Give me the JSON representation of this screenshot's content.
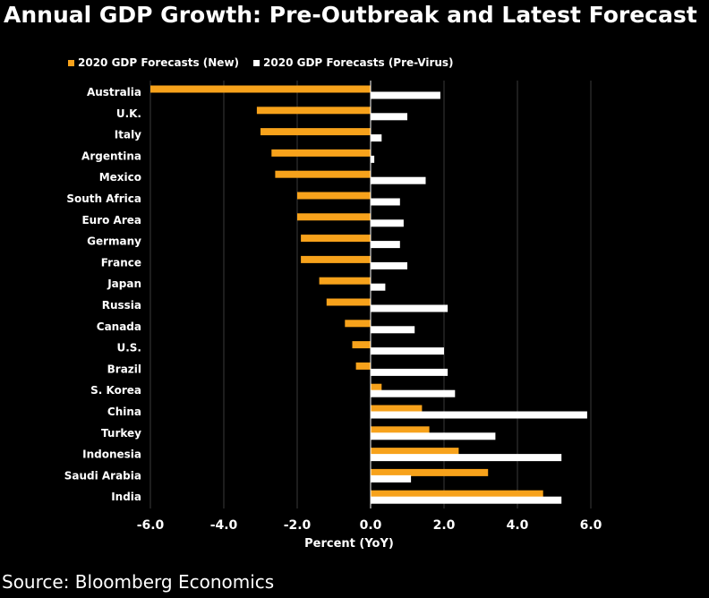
{
  "title": "Annual GDP Growth: Pre-Outbreak and Latest Forecast",
  "source": "Source: Bloomberg Economics",
  "colors": {
    "background": "#000000",
    "new": "#f7a21b",
    "pre_virus": "#ffffff",
    "grid": "#3a3a3a",
    "zero_line": "#ffffff"
  },
  "chart_data": {
    "type": "bar",
    "orientation": "horizontal",
    "title": "Annual GDP Growth: Pre-Outbreak and Latest Forecast",
    "xlabel": "Percent (YoY)",
    "ylabel": "",
    "xlim": [
      -6.0,
      6.0
    ],
    "xticks": [
      -6.0,
      -4.0,
      -2.0,
      0.0,
      2.0,
      4.0,
      6.0
    ],
    "xtick_labels": [
      "-6.0",
      "-4.0",
      "-2.0",
      "0.0",
      "2.0",
      "4.0",
      "6.0"
    ],
    "grid": "vertical",
    "legend_position": "top-left",
    "categories": [
      "Australia",
      "U.K.",
      "Italy",
      "Argentina",
      "Mexico",
      "South Africa",
      "Euro Area",
      "Germany",
      "France",
      "Japan",
      "Russia",
      "Canada",
      "U.S.",
      "Brazil",
      "S. Korea",
      "China",
      "Turkey",
      "Indonesia",
      "Saudi Arabia",
      "India"
    ],
    "series": [
      {
        "name": "2020 GDP Forecasts (New)",
        "color": "#f7a21b",
        "values": [
          -6.0,
          -3.1,
          -3.0,
          -2.7,
          -2.6,
          -2.0,
          -2.0,
          -1.9,
          -1.9,
          -1.4,
          -1.2,
          -0.7,
          -0.5,
          -0.4,
          0.3,
          1.4,
          1.6,
          2.4,
          3.2,
          4.7
        ]
      },
      {
        "name": "2020 GDP Forecasts (Pre-Virus)",
        "color": "#ffffff",
        "values": [
          1.9,
          1.0,
          0.3,
          0.1,
          1.5,
          0.8,
          0.9,
          0.8,
          1.0,
          0.4,
          2.1,
          1.2,
          2.0,
          2.1,
          2.3,
          5.9,
          3.4,
          5.2,
          1.1,
          5.2
        ]
      }
    ]
  }
}
